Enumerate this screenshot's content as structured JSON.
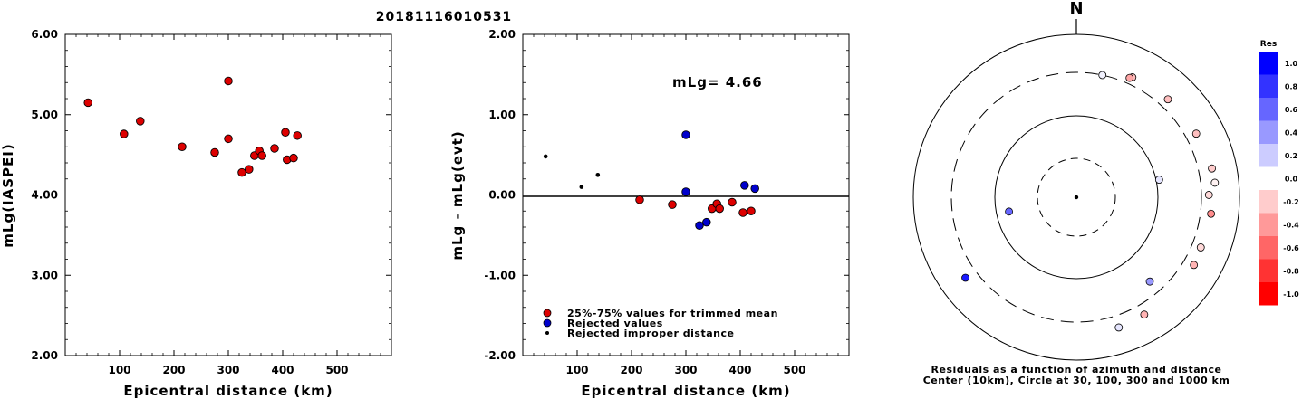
{
  "title": "20181116010531",
  "panel1": {
    "ylabel": "mLg(IASPEI)",
    "xlabel": "Epicentral distance (km)",
    "yticks": [
      "2.00",
      "3.00",
      "4.00",
      "5.00",
      "6.00"
    ],
    "xticks": [
      "100",
      "200",
      "300",
      "400",
      "500"
    ]
  },
  "panel2": {
    "ylabel": "mLg - mLg(evt)",
    "xlabel": "Epicentral distance (km)",
    "yticks": [
      "-2.00",
      "-1.00",
      "0.00",
      "1.00",
      "2.00"
    ],
    "xticks": [
      "100",
      "200",
      "300",
      "400",
      "500"
    ],
    "annotation": "mLg= 4.66",
    "legend": [
      "25%-75% values for trimmed mean",
      "Rejected values",
      "Rejected improper distance"
    ]
  },
  "polar": {
    "north_label": "N",
    "caption_line1": "Residuals as a function of azimuth and distance",
    "caption_line2": "Center (10km), Circle at 30, 100, 300 and 1000 km"
  },
  "colorbar": {
    "title": "Res",
    "labels": [
      "1.0",
      "0.8",
      "0.6",
      "0.4",
      "0.2",
      "0.0",
      "-0.2",
      "-0.4",
      "-0.6",
      "-0.8",
      "-1.0"
    ],
    "colors": [
      "#0000ff",
      "#3333ff",
      "#6666ff",
      "#9999ff",
      "#ccccff",
      "#ffffff",
      "#ffcccc",
      "#ff9999",
      "#ff6666",
      "#ff3333",
      "#ff0000"
    ]
  },
  "chart_data": [
    {
      "type": "scatter",
      "xlabel": "Epicentral distance (km)",
      "ylabel": "mLg(IASPEI)",
      "xlim": [
        0,
        600
      ],
      "ylim": [
        2.0,
        6.0
      ],
      "series": [
        {
          "name": "25%-75% values for trimmed mean",
          "color": "#dd0000",
          "x": [
            42,
            108,
            138,
            215,
            275,
            300,
            300,
            325,
            338,
            348,
            357,
            362,
            385,
            405,
            408,
            420,
            427
          ],
          "y": [
            5.15,
            4.76,
            4.92,
            4.6,
            4.53,
            5.42,
            4.7,
            4.28,
            4.32,
            4.49,
            4.55,
            4.49,
            4.58,
            4.78,
            4.44,
            4.46,
            4.74
          ]
        }
      ]
    },
    {
      "type": "scatter",
      "xlabel": "Epicentral distance (km)",
      "ylabel": "mLg - mLg(evt)",
      "xlim": [
        0,
        600
      ],
      "ylim": [
        -2.0,
        2.0
      ],
      "annotation": "mLg= 4.66",
      "series": [
        {
          "name": "25%-75% values for trimmed mean",
          "color": "#dd0000",
          "x": [
            215,
            275,
            348,
            357,
            362,
            385,
            405,
            420
          ],
          "y": [
            -0.06,
            -0.12,
            -0.17,
            -0.11,
            -0.17,
            -0.09,
            -0.22,
            -0.2
          ]
        },
        {
          "name": "Rejected values",
          "color": "#0000cc",
          "x": [
            300,
            300,
            325,
            338,
            408,
            427
          ],
          "y": [
            0.75,
            0.04,
            -0.38,
            -0.34,
            0.12,
            0.08
          ]
        },
        {
          "name": "Rejected improper distance",
          "color": "#000000",
          "x": [
            42,
            108,
            138
          ],
          "y": [
            0.48,
            0.1,
            0.25
          ]
        }
      ]
    },
    {
      "type": "scatter",
      "polar": true,
      "center_km": 10,
      "rings_km": [
        30,
        100,
        300,
        1000
      ],
      "points": [
        {
          "az": 12,
          "dist": 300,
          "res": 0.05
        },
        {
          "az": 25,
          "dist": 380,
          "res": -0.25
        },
        {
          "az": 24,
          "dist": 360,
          "res": -0.35
        },
        {
          "az": 43,
          "dist": 400,
          "res": -0.25
        },
        {
          "az": 62,
          "dist": 420,
          "res": -0.25
        },
        {
          "az": 78,
          "dist": 108,
          "res": 0.1
        },
        {
          "az": 78,
          "dist": 460,
          "res": -0.2
        },
        {
          "az": 84,
          "dist": 470,
          "res": -0.05
        },
        {
          "az": 89,
          "dist": 380,
          "res": -0.15
        },
        {
          "az": 97,
          "dist": 420,
          "res": -0.45
        },
        {
          "az": 112,
          "dist": 400,
          "res": -0.15
        },
        {
          "az": 120,
          "dist": 420,
          "res": -0.3
        },
        {
          "az": 139,
          "dist": 215,
          "res": 0.4
        },
        {
          "az": 150,
          "dist": 420,
          "res": -0.3
        },
        {
          "az": 162,
          "dist": 440,
          "res": 0.1
        },
        {
          "az": 258,
          "dist": 70,
          "res": 0.6
        },
        {
          "az": 234,
          "dist": 440,
          "res": 0.9
        }
      ]
    }
  ]
}
